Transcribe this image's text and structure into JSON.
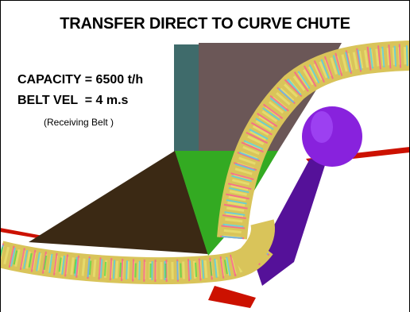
{
  "title": "TRANSFER DIRECT TO CURVE CHUTE",
  "specs": {
    "capacity": "CAPACITY = 6500 t/h",
    "belt_velocity": "BELT VEL  = 4 m.s",
    "note": "(Receiving Belt )"
  },
  "colors": {
    "chute_wall": "#6b5757",
    "headframe": "#3f6b6b",
    "hopper_dark": "#3b2914",
    "hopper_green": "#33aa22",
    "head_pulley": "#8822dd",
    "belt_red": "#cc1100",
    "chute_purple": "#551199"
  }
}
